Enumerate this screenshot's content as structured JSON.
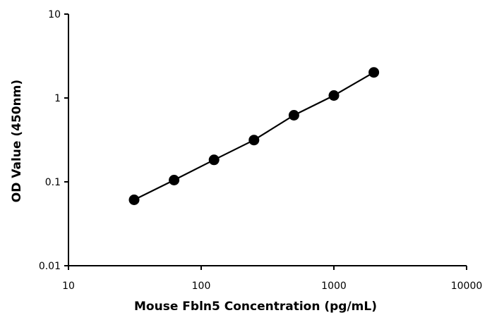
{
  "chart_data": {
    "type": "line",
    "title": "",
    "xlabel": "Mouse Fbln5 Concentration (pg/mL)",
    "ylabel": "OD Value (450nm)",
    "xscale": "log",
    "yscale": "log",
    "xlim": [
      10,
      10000
    ],
    "ylim": [
      0.01,
      10
    ],
    "x_ticks": [
      "10",
      "100",
      "1000",
      "10000"
    ],
    "y_ticks": [
      "0.01",
      "0.1",
      "1",
      "10"
    ],
    "grid": false,
    "legend": "none",
    "series": [
      {
        "color": "#000000",
        "marker": "circle",
        "x": [
          31.25,
          62.5,
          125,
          250,
          500,
          1000,
          2000
        ],
        "y": [
          0.061,
          0.105,
          0.183,
          0.315,
          0.622,
          1.07,
          2.02
        ]
      }
    ]
  }
}
